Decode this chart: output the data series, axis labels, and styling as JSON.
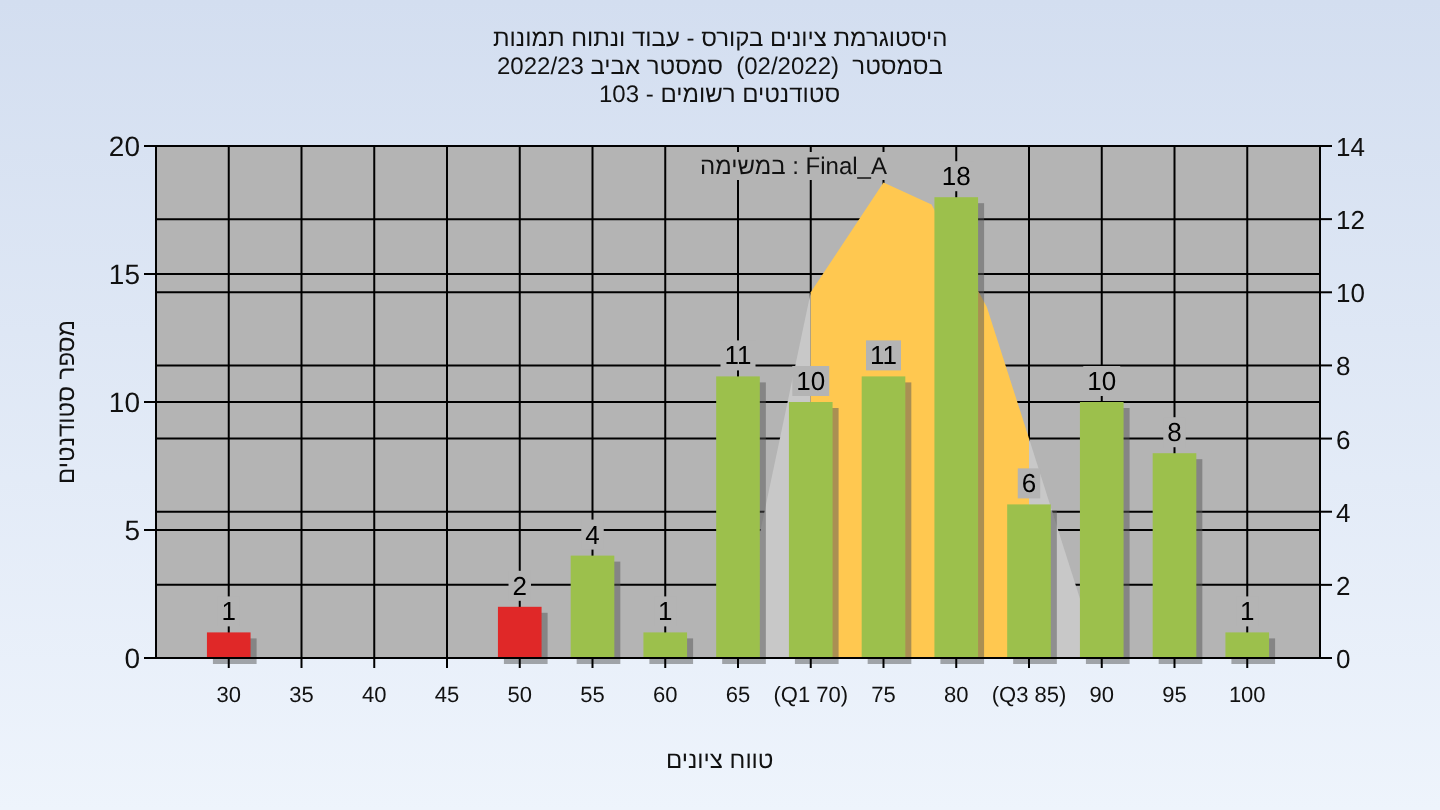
{
  "chart_data": {
    "type": "bar",
    "title": "היסטוגרמת ציונים בקורס - עבוד ונתוח תמונות",
    "subtitle": "בסמסטר  (02/2022)  סמסטר אביב 2022/23\nסטודנטים רשומים - 103",
    "xlabel": "טווח ציונים",
    "ylabel": "מספר סטודנטים",
    "annotations": [
      "במשימה : Final_A"
    ],
    "x": [
      30,
      35,
      40,
      45,
      50,
      55,
      60,
      65,
      70,
      75,
      80,
      85,
      90,
      95,
      100
    ],
    "series": [
      {
        "type": "area",
        "axis": "y2",
        "color": "#c8c8c8",
        "x": [
          64.7,
          70
        ],
        "values": [
          0,
          10
        ]
      },
      {
        "type": "area",
        "axis": "y2",
        "color": "#c8c8c8",
        "x": [
          85,
          89.8
        ],
        "values": [
          6,
          0
        ]
      },
      {
        "type": "area",
        "axis": "y2",
        "color": "#ffc850",
        "x": [
          70,
          75,
          78.3,
          82.1,
          85
        ],
        "values": [
          10,
          13,
          12.4,
          9.6,
          6
        ]
      },
      {
        "colors": [
          "#e02828",
          "#9cc04c",
          "#9cc04c",
          "#9cc04c",
          "#e02828",
          "#9cc04c",
          "#9cc04c",
          "#9cc04c",
          "#9cc04c",
          "#9cc04c",
          "#9cc04c",
          "#9cc04c",
          "#9cc04c",
          "#9cc04c",
          "#9cc04c"
        ],
        "values": [
          1,
          0,
          0,
          0,
          2,
          4,
          1,
          11,
          10,
          11,
          18,
          6,
          10,
          8,
          1
        ],
        "value_labels": [
          "1",
          null,
          null,
          null,
          "2",
          "4",
          "1",
          "11",
          "10",
          "11",
          "18",
          "6",
          "10",
          "8",
          "1"
        ]
      }
    ],
    "xlim": [
      25,
      105
    ],
    "xticks": [
      30,
      35,
      40,
      45,
      50,
      55,
      60,
      65,
      {
        "value": 70,
        "label": "(Q1 70)"
      },
      75,
      80,
      {
        "value": 85,
        "label": "(Q3 85)"
      },
      90,
      95,
      100
    ],
    "ylim": [
      0,
      20
    ],
    "yticks": [
      0,
      5,
      10,
      15,
      20
    ],
    "y2lim": [
      0,
      14
    ],
    "y2ticks": [
      0,
      2,
      4,
      6,
      8,
      10,
      12,
      14
    ],
    "grid": true
  }
}
